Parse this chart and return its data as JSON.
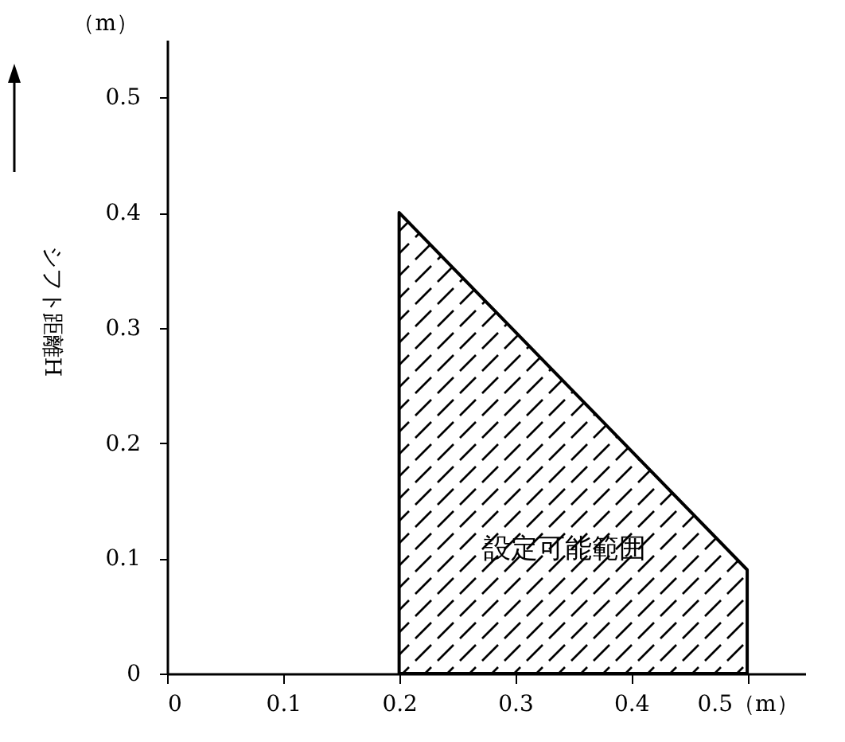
{
  "chart_data": {
    "type": "area",
    "ylabel": "シフト距離H",
    "x": [
      0.2,
      0.5
    ],
    "series": [
      {
        "color": "#000000",
        "values": [
          0.4,
          0.09
        ]
      }
    ],
    "xlim": [
      0,
      0.55
    ],
    "ylim": [
      0,
      0.55
    ],
    "xticks": [
      0,
      0.1,
      0.2,
      0.3,
      0.4,
      {
        "value": 0.5,
        "label": "0.5（m）"
      }
    ],
    "yticks": [
      0,
      0.1,
      0.2,
      0.3,
      0.4,
      0.5
    ],
    "annotations": [
      "（m）",
      "設定可能範囲"
    ],
    "grid": false
  }
}
